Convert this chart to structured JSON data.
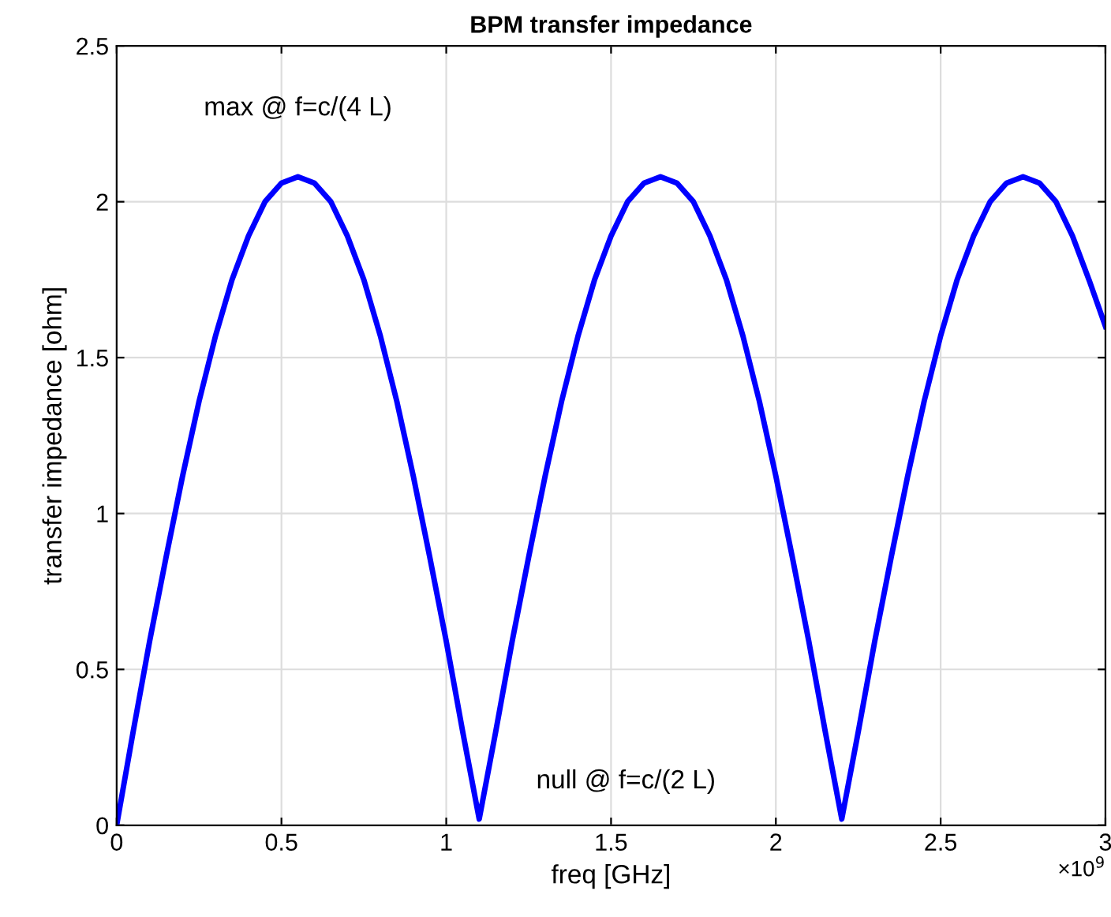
{
  "chart_data": {
    "type": "line",
    "title": "BPM transfer impedance",
    "xlabel": "freq [GHz]",
    "ylabel": "transfer impedance [ohm]",
    "x": [
      0,
      0.05,
      0.1,
      0.15,
      0.2,
      0.25,
      0.3,
      0.35,
      0.4,
      0.45,
      0.5,
      0.55,
      0.6,
      0.65,
      0.7,
      0.75,
      0.8,
      0.85,
      0.9,
      0.95,
      1.0,
      1.05,
      1.1,
      1.15,
      1.2,
      1.25,
      1.3,
      1.35,
      1.4,
      1.45,
      1.5,
      1.55,
      1.6,
      1.65,
      1.7,
      1.75,
      1.8,
      1.85,
      1.9,
      1.95,
      2.0,
      2.05,
      2.1,
      2.15,
      2.2,
      2.25,
      2.3,
      2.35,
      2.4,
      2.45,
      2.5,
      2.55,
      2.6,
      2.65,
      2.7,
      2.75,
      2.8,
      2.85,
      2.9,
      2.95,
      3.0
    ],
    "series": [
      {
        "color": "#0000ff",
        "values": [
          0,
          0.3,
          0.59,
          0.86,
          1.12,
          1.36,
          1.57,
          1.75,
          1.89,
          2.0,
          2.06,
          2.08,
          2.06,
          2.0,
          1.89,
          1.75,
          1.57,
          1.36,
          1.12,
          0.86,
          0.59,
          0.3,
          0.02,
          0.3,
          0.59,
          0.86,
          1.12,
          1.36,
          1.57,
          1.75,
          1.89,
          2.0,
          2.06,
          2.08,
          2.06,
          2.0,
          1.89,
          1.75,
          1.57,
          1.36,
          1.12,
          0.86,
          0.59,
          0.3,
          0.02,
          0.3,
          0.59,
          0.86,
          1.12,
          1.36,
          1.57,
          1.75,
          1.89,
          2.0,
          2.06,
          2.08,
          2.06,
          2.0,
          1.89,
          1.75,
          1.6
        ]
      }
    ],
    "xlim": [
      0,
      3
    ],
    "ylim": [
      0,
      2.5
    ],
    "xticks": [
      0,
      0.5,
      1,
      1.5,
      2,
      2.5,
      3
    ],
    "yticks": [
      0,
      0.5,
      1,
      1.5,
      2,
      2.5
    ],
    "grid": true,
    "marker": "none",
    "line_style": "solid",
    "annotations": [
      {
        "text": "max @ f=c/(4 L)",
        "x": 0.55,
        "y": 2.08
      },
      {
        "text": "null @ f=c/(2 L)",
        "x": 1.1,
        "y": 0.02
      },
      "×10$^{9}$"
    ]
  }
}
